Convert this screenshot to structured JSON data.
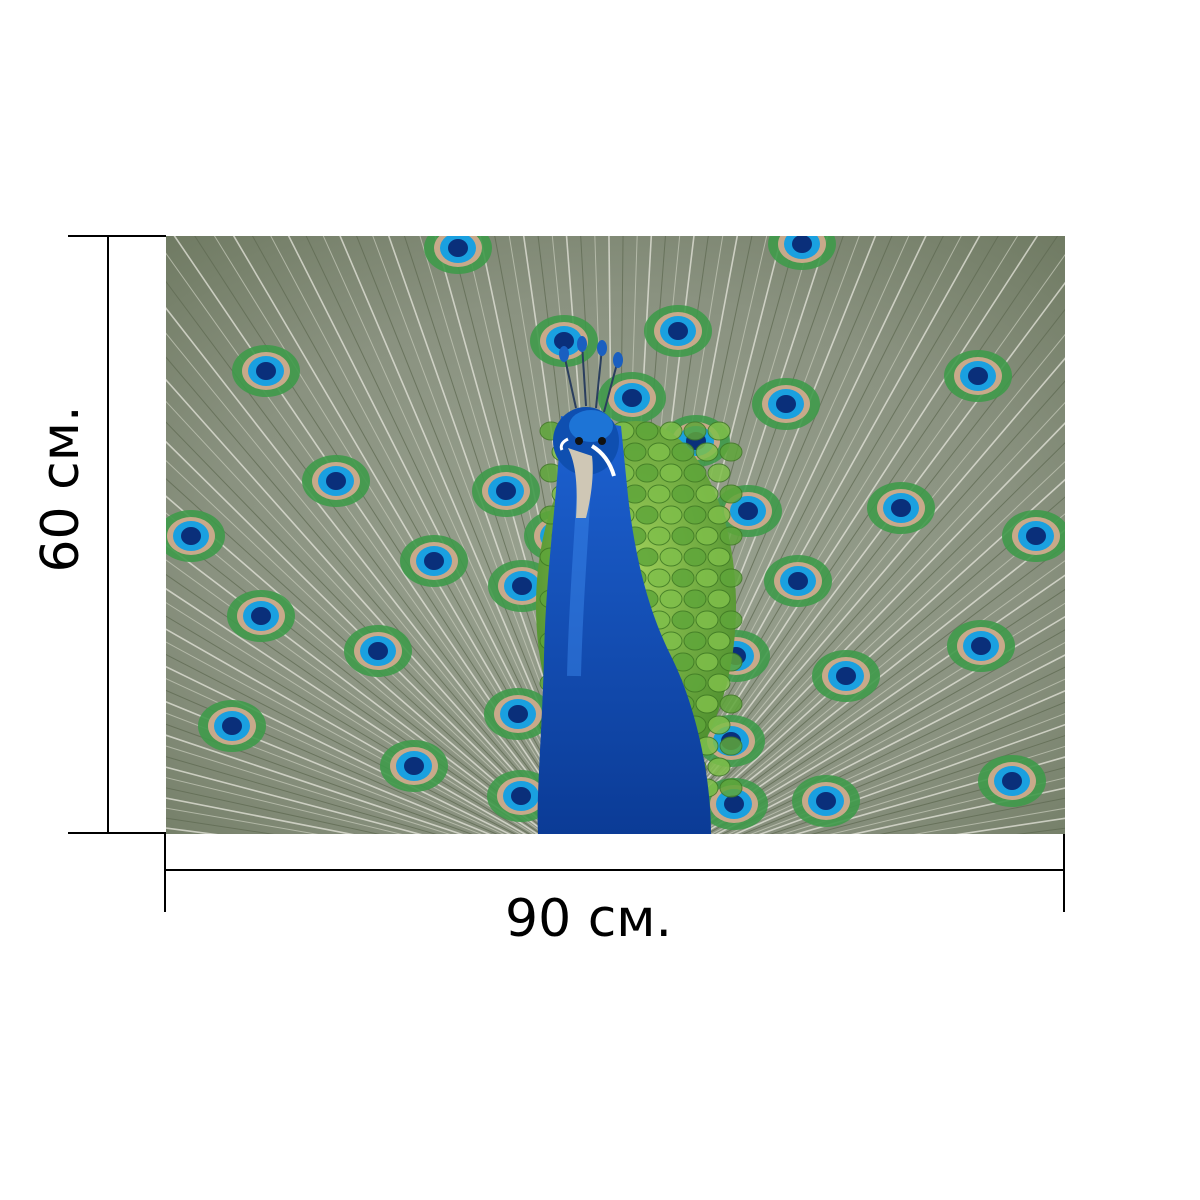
{
  "product": {
    "width_label": "90 см.",
    "height_label": "60 см.",
    "photo_subject": "peacock-with-open-tail"
  },
  "colors": {
    "background": "#ffffff",
    "dimension_lines": "#000000",
    "peacock_blue": "#0a4fb8",
    "feather_green": "#3f9a4a",
    "eye_blue": "#1aa0e0",
    "feather_gray": "#a9ad9f"
  }
}
